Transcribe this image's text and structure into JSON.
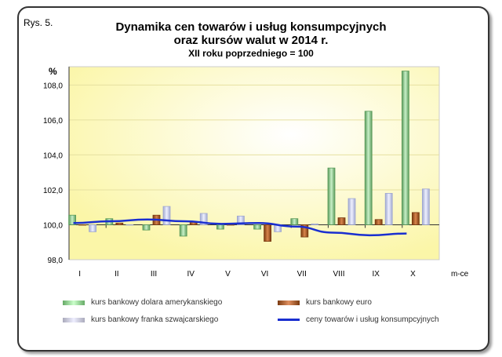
{
  "figure_label": "Rys. 5.",
  "chart_data": {
    "type": "bar",
    "title_line1": "Dynamika cen towarów i usług konsumpcyjnych",
    "title_line2": "oraz kursów walut w 2014 r.",
    "subtitle": "XII roku poprzedniego = 100",
    "ylabel": "%",
    "xlabel": "m-ce",
    "ylim": [
      98,
      108.8
    ],
    "yticks": [
      "98,0",
      "100,0",
      "102,0",
      "104,0",
      "106,0",
      "108,0"
    ],
    "ytick_values": [
      98,
      100,
      102,
      104,
      106,
      108
    ],
    "baseline": 100,
    "categories": [
      "I",
      "II",
      "III",
      "IV",
      "V",
      "VI",
      "VII",
      "VIII",
      "IX",
      "X"
    ],
    "series": [
      {
        "name": "kurs bankowy dolara amerykanskiego",
        "type": "bar",
        "color": "#a8e0a8",
        "values": [
          100.55,
          100.35,
          99.7,
          99.35,
          99.75,
          99.75,
          100.35,
          103.25,
          106.5,
          108.8
        ]
      },
      {
        "name": "kurs bankowy euro",
        "type": "bar",
        "color": "#b8642c",
        "values": [
          100.0,
          100.1,
          100.55,
          100.15,
          100.0,
          99.05,
          99.3,
          100.4,
          100.3,
          100.7
        ]
      },
      {
        "name": "kurs bankowy franka szwajcarskiego",
        "type": "bar",
        "color": "#c8cff0",
        "values": [
          99.6,
          100.0,
          101.05,
          100.65,
          100.5,
          99.6,
          100.05,
          101.5,
          101.8,
          102.05
        ]
      },
      {
        "name": "ceny towarów i usług konsumpcyjnych",
        "type": "line",
        "color": "#1a2fd0",
        "values": [
          100.1,
          100.2,
          100.3,
          100.2,
          100.05,
          100.1,
          99.9,
          99.55,
          99.4,
          99.5
        ]
      }
    ],
    "grid": true,
    "legend": "bottom"
  }
}
